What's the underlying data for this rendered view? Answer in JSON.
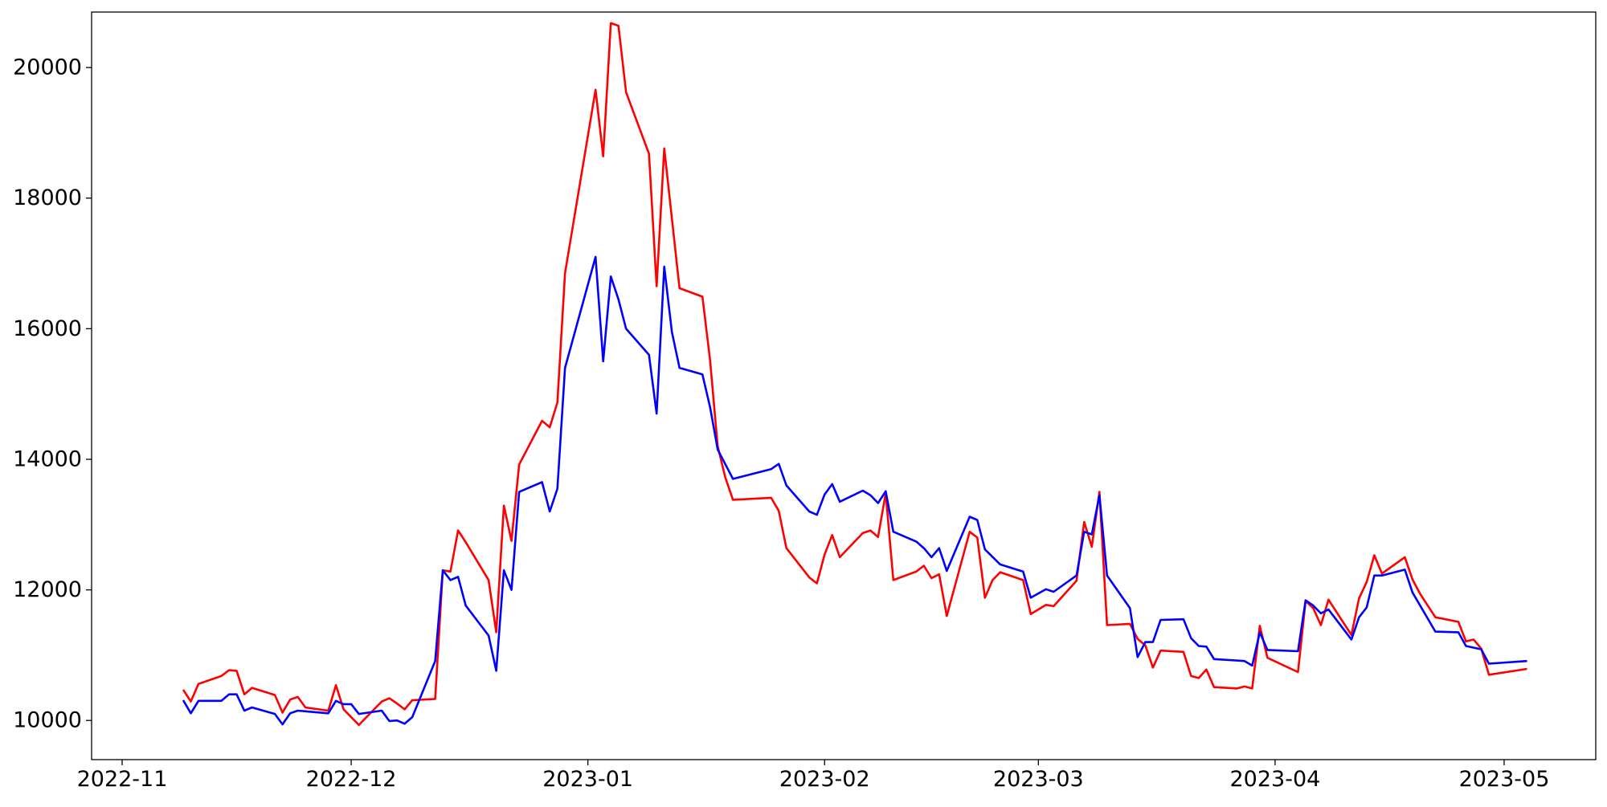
{
  "chart_data": {
    "type": "line",
    "title": "",
    "xlabel": "",
    "ylabel": "",
    "grid": false,
    "legend": "none",
    "xlim": [
      "2022-10-28",
      "2023-05-13"
    ],
    "ylim": [
      9400,
      20850
    ],
    "x_ticks": [
      "2022-11",
      "2022-12",
      "2023-01",
      "2023-02",
      "2023-03",
      "2023-04",
      "2023-05"
    ],
    "y_ticks": [
      10000,
      12000,
      14000,
      16000,
      18000,
      20000
    ],
    "series": [
      {
        "color": "#ff0000",
        "points": [
          [
            "2022-11-09",
            10470
          ],
          [
            "2022-11-10",
            10290
          ],
          [
            "2022-11-11",
            10560
          ],
          [
            "2022-11-14",
            10680
          ],
          [
            "2022-11-15",
            10770
          ],
          [
            "2022-11-16",
            10760
          ],
          [
            "2022-11-17",
            10400
          ],
          [
            "2022-11-18",
            10500
          ],
          [
            "2022-11-21",
            10390
          ],
          [
            "2022-11-22",
            10120
          ],
          [
            "2022-11-23",
            10320
          ],
          [
            "2022-11-24",
            10360
          ],
          [
            "2022-11-25",
            10200
          ],
          [
            "2022-11-28",
            10150
          ],
          [
            "2022-11-29",
            10540
          ],
          [
            "2022-11-30",
            10170
          ],
          [
            "2022-12-01",
            10050
          ],
          [
            "2022-12-02",
            9930
          ],
          [
            "2022-12-05",
            10290
          ],
          [
            "2022-12-06",
            10340
          ],
          [
            "2022-12-07",
            10260
          ],
          [
            "2022-12-08",
            10170
          ],
          [
            "2022-12-09",
            10310
          ],
          [
            "2022-12-12",
            10330
          ],
          [
            "2022-12-13",
            12300
          ],
          [
            "2022-12-14",
            12280
          ],
          [
            "2022-12-15",
            12910
          ],
          [
            "2022-12-16",
            12730
          ],
          [
            "2022-12-19",
            12150
          ],
          [
            "2022-12-20",
            11350
          ],
          [
            "2022-12-21",
            13290
          ],
          [
            "2022-12-22",
            12750
          ],
          [
            "2022-12-23",
            13920
          ],
          [
            "2022-12-26",
            14590
          ],
          [
            "2022-12-27",
            14490
          ],
          [
            "2022-12-28",
            14870
          ],
          [
            "2022-12-29",
            16850
          ],
          [
            "2023-01-02",
            19660
          ],
          [
            "2023-01-03",
            18640
          ],
          [
            "2023-01-04",
            20680
          ],
          [
            "2023-01-05",
            20640
          ],
          [
            "2023-01-06",
            19620
          ],
          [
            "2023-01-09",
            18680
          ],
          [
            "2023-01-10",
            16650
          ],
          [
            "2023-01-11",
            18760
          ],
          [
            "2023-01-13",
            16620
          ],
          [
            "2023-01-16",
            16490
          ],
          [
            "2023-01-17",
            15520
          ],
          [
            "2023-01-18",
            14200
          ],
          [
            "2023-01-19",
            13720
          ],
          [
            "2023-01-20",
            13380
          ],
          [
            "2023-01-25",
            13410
          ],
          [
            "2023-01-26",
            13210
          ],
          [
            "2023-01-27",
            12640
          ],
          [
            "2023-01-30",
            12190
          ],
          [
            "2023-01-31",
            12100
          ],
          [
            "2023-02-01",
            12540
          ],
          [
            "2023-02-02",
            12840
          ],
          [
            "2023-02-03",
            12500
          ],
          [
            "2023-02-06",
            12870
          ],
          [
            "2023-02-07",
            12910
          ],
          [
            "2023-02-08",
            12810
          ],
          [
            "2023-02-09",
            13480
          ],
          [
            "2023-02-10",
            12150
          ],
          [
            "2023-02-13",
            12280
          ],
          [
            "2023-02-14",
            12370
          ],
          [
            "2023-02-15",
            12180
          ],
          [
            "2023-02-16",
            12240
          ],
          [
            "2023-02-17",
            11600
          ],
          [
            "2023-02-20",
            12890
          ],
          [
            "2023-02-21",
            12800
          ],
          [
            "2023-02-22",
            11880
          ],
          [
            "2023-02-23",
            12150
          ],
          [
            "2023-02-24",
            12270
          ],
          [
            "2023-02-27",
            12150
          ],
          [
            "2023-02-28",
            11630
          ],
          [
            "2023-03-02",
            11770
          ],
          [
            "2023-03-03",
            11750
          ],
          [
            "2023-03-06",
            12140
          ],
          [
            "2023-03-07",
            13040
          ],
          [
            "2023-03-08",
            12660
          ],
          [
            "2023-03-09",
            13500
          ],
          [
            "2023-03-10",
            11460
          ],
          [
            "2023-03-13",
            11480
          ],
          [
            "2023-03-14",
            11250
          ],
          [
            "2023-03-15",
            11150
          ],
          [
            "2023-03-16",
            10810
          ],
          [
            "2023-03-17",
            11070
          ],
          [
            "2023-03-20",
            11050
          ],
          [
            "2023-03-21",
            10680
          ],
          [
            "2023-03-22",
            10650
          ],
          [
            "2023-03-23",
            10780
          ],
          [
            "2023-03-24",
            10510
          ],
          [
            "2023-03-27",
            10490
          ],
          [
            "2023-03-28",
            10520
          ],
          [
            "2023-03-29",
            10490
          ],
          [
            "2023-03-30",
            11450
          ],
          [
            "2023-03-31",
            10960
          ],
          [
            "2023-04-04",
            10740
          ],
          [
            "2023-04-05",
            11830
          ],
          [
            "2023-04-06",
            11720
          ],
          [
            "2023-04-07",
            11460
          ],
          [
            "2023-04-08",
            11850
          ],
          [
            "2023-04-11",
            11310
          ],
          [
            "2023-04-12",
            11870
          ],
          [
            "2023-04-13",
            12120
          ],
          [
            "2023-04-14",
            12530
          ],
          [
            "2023-04-15",
            12250
          ],
          [
            "2023-04-18",
            12500
          ],
          [
            "2023-04-19",
            12160
          ],
          [
            "2023-04-20",
            11940
          ],
          [
            "2023-04-22",
            11580
          ],
          [
            "2023-04-25",
            11510
          ],
          [
            "2023-04-26",
            11210
          ],
          [
            "2023-04-27",
            11240
          ],
          [
            "2023-04-28",
            11100
          ],
          [
            "2023-04-29",
            10700
          ],
          [
            "2023-05-04",
            10790
          ]
        ]
      },
      {
        "color": "#0000ff",
        "points": [
          [
            "2022-11-09",
            10310
          ],
          [
            "2022-11-10",
            10110
          ],
          [
            "2022-11-11",
            10300
          ],
          [
            "2022-11-14",
            10300
          ],
          [
            "2022-11-15",
            10400
          ],
          [
            "2022-11-16",
            10400
          ],
          [
            "2022-11-17",
            10150
          ],
          [
            "2022-11-18",
            10200
          ],
          [
            "2022-11-21",
            10100
          ],
          [
            "2022-11-22",
            9940
          ],
          [
            "2022-11-23",
            10110
          ],
          [
            "2022-11-24",
            10150
          ],
          [
            "2022-11-28",
            10110
          ],
          [
            "2022-11-29",
            10300
          ],
          [
            "2022-11-30",
            10250
          ],
          [
            "2022-12-01",
            10250
          ],
          [
            "2022-12-02",
            10100
          ],
          [
            "2022-12-05",
            10150
          ],
          [
            "2022-12-06",
            9990
          ],
          [
            "2022-12-07",
            10000
          ],
          [
            "2022-12-08",
            9950
          ],
          [
            "2022-12-09",
            10050
          ],
          [
            "2022-12-12",
            10910
          ],
          [
            "2022-12-13",
            12300
          ],
          [
            "2022-12-14",
            12150
          ],
          [
            "2022-12-15",
            12200
          ],
          [
            "2022-12-16",
            11760
          ],
          [
            "2022-12-19",
            11300
          ],
          [
            "2022-12-20",
            10760
          ],
          [
            "2022-12-21",
            12300
          ],
          [
            "2022-12-22",
            12000
          ],
          [
            "2022-12-23",
            13500
          ],
          [
            "2022-12-26",
            13650
          ],
          [
            "2022-12-27",
            13200
          ],
          [
            "2022-12-28",
            13550
          ],
          [
            "2022-12-29",
            15400
          ],
          [
            "2023-01-02",
            17100
          ],
          [
            "2023-01-03",
            15500
          ],
          [
            "2023-01-04",
            16800
          ],
          [
            "2023-01-05",
            16450
          ],
          [
            "2023-01-06",
            16000
          ],
          [
            "2023-01-09",
            15600
          ],
          [
            "2023-01-10",
            14700
          ],
          [
            "2023-01-11",
            16950
          ],
          [
            "2023-01-12",
            15950
          ],
          [
            "2023-01-13",
            15400
          ],
          [
            "2023-01-16",
            15300
          ],
          [
            "2023-01-17",
            14800
          ],
          [
            "2023-01-18",
            14150
          ],
          [
            "2023-01-20",
            13700
          ],
          [
            "2023-01-25",
            13850
          ],
          [
            "2023-01-26",
            13930
          ],
          [
            "2023-01-27",
            13600
          ],
          [
            "2023-01-30",
            13200
          ],
          [
            "2023-01-31",
            13150
          ],
          [
            "2023-02-01",
            13460
          ],
          [
            "2023-02-02",
            13620
          ],
          [
            "2023-02-03",
            13350
          ],
          [
            "2023-02-06",
            13520
          ],
          [
            "2023-02-07",
            13450
          ],
          [
            "2023-02-08",
            13330
          ],
          [
            "2023-02-09",
            13510
          ],
          [
            "2023-02-10",
            12890
          ],
          [
            "2023-02-13",
            12740
          ],
          [
            "2023-02-14",
            12640
          ],
          [
            "2023-02-15",
            12500
          ],
          [
            "2023-02-16",
            12640
          ],
          [
            "2023-02-17",
            12290
          ],
          [
            "2023-02-20",
            13120
          ],
          [
            "2023-02-21",
            13070
          ],
          [
            "2023-02-22",
            12620
          ],
          [
            "2023-02-24",
            12390
          ],
          [
            "2023-02-27",
            12280
          ],
          [
            "2023-02-28",
            11880
          ],
          [
            "2023-03-02",
            12010
          ],
          [
            "2023-03-03",
            11970
          ],
          [
            "2023-03-06",
            12220
          ],
          [
            "2023-03-07",
            12890
          ],
          [
            "2023-03-08",
            12850
          ],
          [
            "2023-03-09",
            13450
          ],
          [
            "2023-03-10",
            12220
          ],
          [
            "2023-03-13",
            11720
          ],
          [
            "2023-03-14",
            10970
          ],
          [
            "2023-03-15",
            11200
          ],
          [
            "2023-03-16",
            11200
          ],
          [
            "2023-03-17",
            11540
          ],
          [
            "2023-03-20",
            11550
          ],
          [
            "2023-03-21",
            11260
          ],
          [
            "2023-03-22",
            11140
          ],
          [
            "2023-03-23",
            11130
          ],
          [
            "2023-03-24",
            10940
          ],
          [
            "2023-03-28",
            10910
          ],
          [
            "2023-03-29",
            10840
          ],
          [
            "2023-03-30",
            11350
          ],
          [
            "2023-03-31",
            11080
          ],
          [
            "2023-04-04",
            11060
          ],
          [
            "2023-04-05",
            11840
          ],
          [
            "2023-04-06",
            11760
          ],
          [
            "2023-04-07",
            11640
          ],
          [
            "2023-04-08",
            11700
          ],
          [
            "2023-04-11",
            11240
          ],
          [
            "2023-04-12",
            11580
          ],
          [
            "2023-04-13",
            11730
          ],
          [
            "2023-04-14",
            12220
          ],
          [
            "2023-04-15",
            12220
          ],
          [
            "2023-04-18",
            12310
          ],
          [
            "2023-04-19",
            11960
          ],
          [
            "2023-04-22",
            11360
          ],
          [
            "2023-04-25",
            11350
          ],
          [
            "2023-04-26",
            11140
          ],
          [
            "2023-04-28",
            11090
          ],
          [
            "2023-04-29",
            10870
          ],
          [
            "2023-05-04",
            10910
          ]
        ]
      }
    ]
  }
}
